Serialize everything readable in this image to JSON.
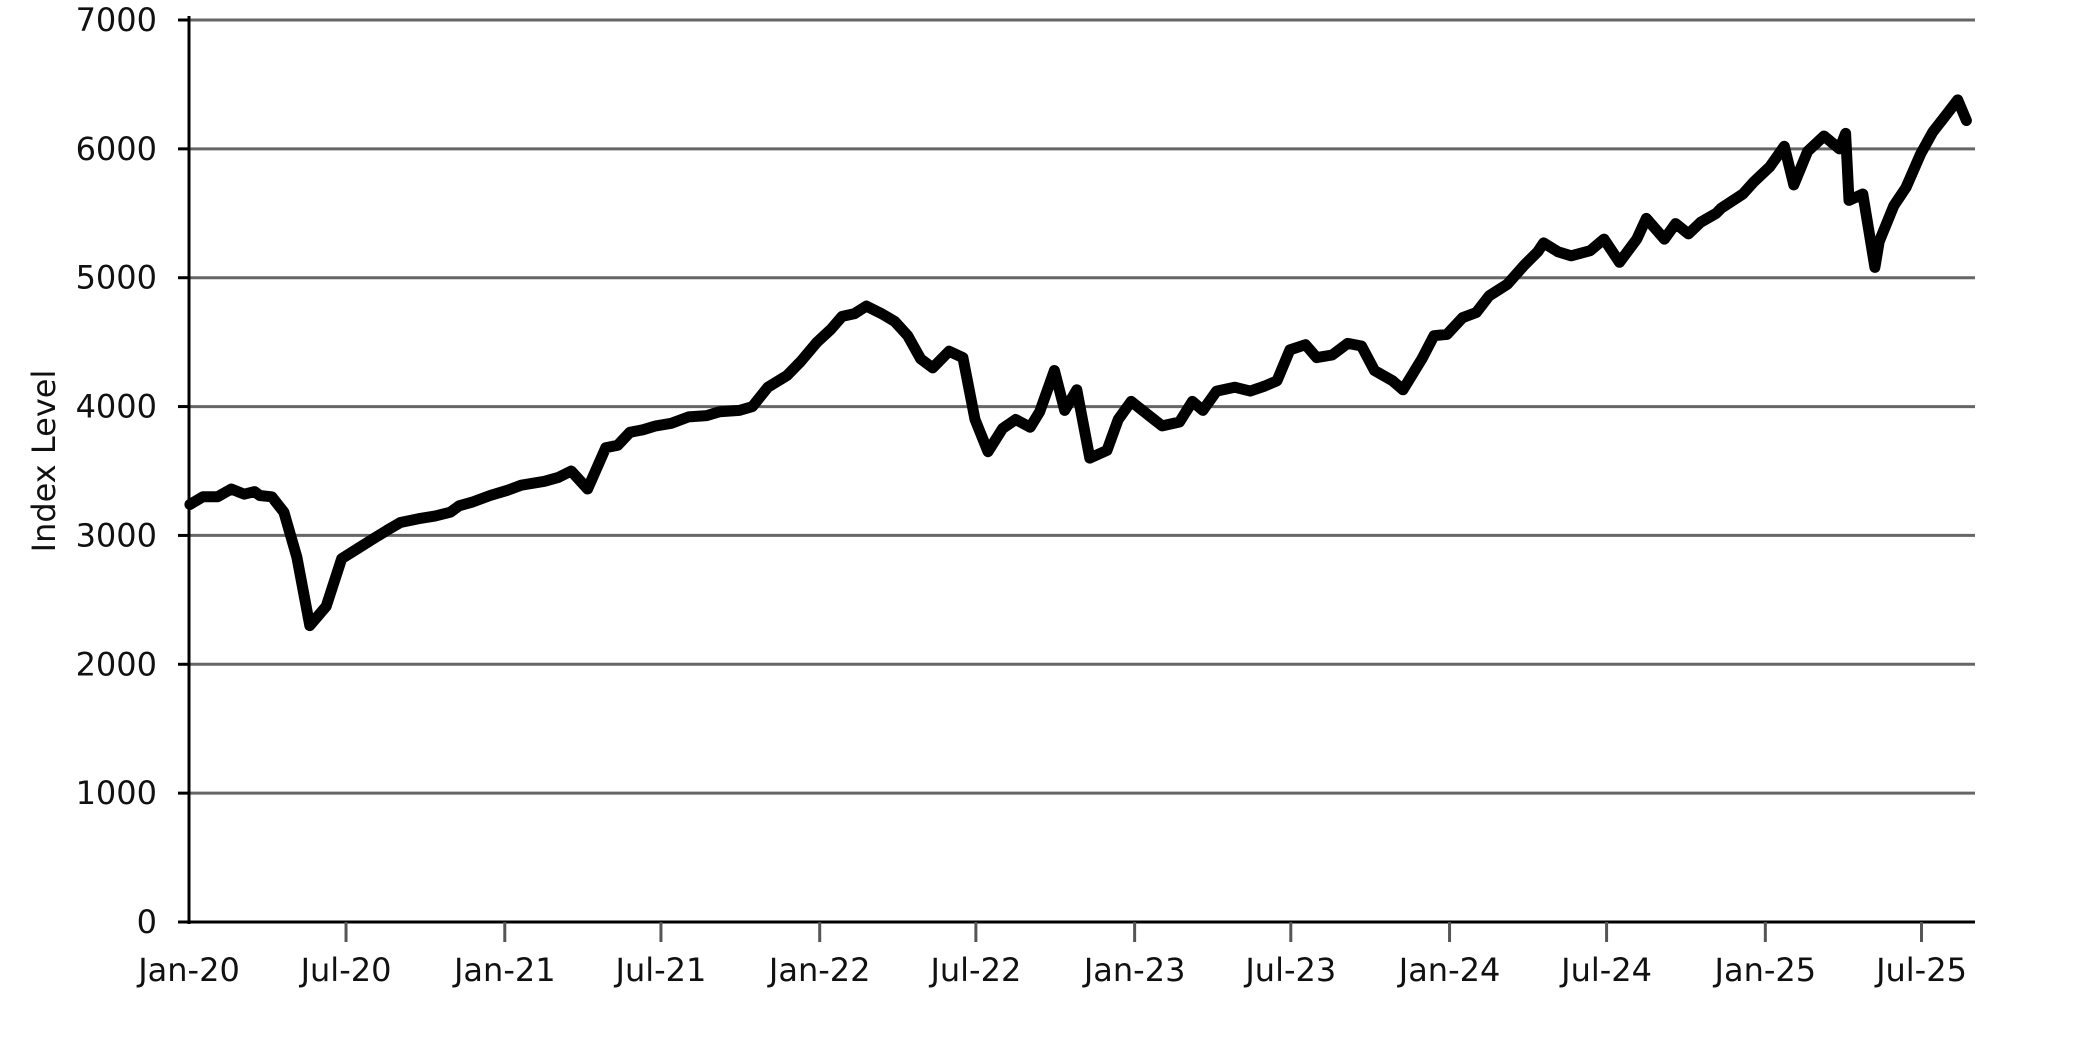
{
  "chart_data": {
    "type": "line",
    "title": "",
    "xlabel": "",
    "ylabel": "Index Level",
    "ylim": [
      0,
      7000
    ],
    "xlim": [
      "2020-01",
      "2025-09"
    ],
    "yticks": [
      0,
      1000,
      2000,
      3000,
      4000,
      5000,
      6000,
      7000
    ],
    "ytick_labels": [
      "0",
      "1000",
      "2000",
      "3000",
      "4000",
      "5000",
      "6000",
      "7000"
    ],
    "xticks": [
      "2020-01",
      "2020-07",
      "2021-01",
      "2021-07",
      "2022-01",
      "2022-07",
      "2023-01",
      "2023-07",
      "2024-01",
      "2024-07",
      "2025-01",
      "2025-07"
    ],
    "xtick_labels": [
      "Jan-20",
      "Jul-20",
      "Jan-21",
      "Jul-21",
      "Jan-22",
      "Jul-22",
      "Jan-23",
      "Jul-23",
      "Jan-24",
      "Jul-24",
      "Jan-25",
      "Jul-25"
    ],
    "grid": "horizontal",
    "line_color": "#000000",
    "grid_color": "#666666",
    "series": [
      {
        "x": [
          "2020-01-02",
          "2020-01-17",
          "2020-02-03",
          "2020-02-19",
          "2020-03-05",
          "2020-03-17",
          "2020-03-23",
          "2020-04-06",
          "2020-04-20",
          "2020-05-05",
          "2020-05-20",
          "2020-06-08",
          "2020-06-26",
          "2020-07-15",
          "2020-08-03",
          "2020-08-20",
          "2020-09-02",
          "2020-09-23",
          "2020-10-12",
          "2020-10-30",
          "2020-11-09",
          "2020-11-25",
          "2020-12-15",
          "2021-01-04",
          "2021-01-20",
          "2021-02-16",
          "2021-03-04",
          "2021-03-19",
          "2021-04-07",
          "2021-04-28",
          "2021-05-12",
          "2021-05-26",
          "2021-06-10",
          "2021-06-25",
          "2021-07-13",
          "2021-08-02",
          "2021-08-23",
          "2021-09-07",
          "2021-09-30",
          "2021-10-15",
          "2021-11-02",
          "2021-11-24",
          "2021-12-10",
          "2021-12-29",
          "2022-01-14",
          "2022-01-27",
          "2022-02-10",
          "2022-02-24",
          "2022-03-14",
          "2022-03-29",
          "2022-04-13",
          "2022-04-28",
          "2022-05-12",
          "2022-05-31",
          "2022-06-16",
          "2022-06-30",
          "2022-07-15",
          "2022-08-01",
          "2022-08-16",
          "2022-09-02",
          "2022-09-13",
          "2022-09-30",
          "2022-10-12",
          "2022-10-26",
          "2022-11-10",
          "2022-11-30",
          "2022-12-13",
          "2022-12-28",
          "2023-01-12",
          "2023-02-02",
          "2023-02-22",
          "2023-03-09",
          "2023-03-21",
          "2023-04-06",
          "2023-04-27",
          "2023-05-15",
          "2023-06-01",
          "2023-06-15",
          "2023-06-30",
          "2023-07-18",
          "2023-07-31",
          "2023-08-18",
          "2023-09-05",
          "2023-09-21",
          "2023-10-06",
          "2023-10-27",
          "2023-11-08",
          "2023-11-30",
          "2023-12-14",
          "2023-12-29",
          "2024-01-16",
          "2024-02-01",
          "2024-02-16",
          "2024-03-08",
          "2024-03-28",
          "2024-04-12",
          "2024-04-19",
          "2024-05-06",
          "2024-05-21",
          "2024-06-12",
          "2024-06-28",
          "2024-07-16",
          "2024-08-05",
          "2024-08-16",
          "2024-09-06",
          "2024-09-19",
          "2024-10-04",
          "2024-10-18",
          "2024-11-05",
          "2024-11-11",
          "2024-12-06",
          "2024-12-18",
          "2025-01-06",
          "2025-01-23",
          "2025-02-03",
          "2025-02-19",
          "2025-03-10",
          "2025-03-28",
          "2025-04-04",
          "2025-04-08",
          "2025-04-24",
          "2025-05-08",
          "2025-05-13",
          "2025-05-30",
          "2025-06-13",
          "2025-06-30",
          "2025-07-14",
          "2025-07-28",
          "2025-08-12",
          "2025-08-22"
        ],
        "y": [
          3240,
          3300,
          3300,
          3360,
          3320,
          3340,
          3310,
          3300,
          3180,
          2830,
          2300,
          2450,
          2820,
          2900,
          2980,
          3050,
          3100,
          3130,
          3150,
          3180,
          3230,
          3260,
          3310,
          3350,
          3390,
          3420,
          3450,
          3500,
          3360,
          3680,
          3700,
          3800,
          3820,
          3850,
          3870,
          3920,
          3930,
          3960,
          3970,
          4000,
          4150,
          4240,
          4350,
          4500,
          4600,
          4700,
          4720,
          4780,
          4720,
          4660,
          4550,
          4370,
          4300,
          4430,
          4380,
          3900,
          3650,
          3830,
          3900,
          3840,
          3960,
          4280,
          3970,
          4130,
          3600,
          3660,
          3900,
          4040,
          3960,
          3850,
          3880,
          4040,
          3970,
          4120,
          4150,
          4120,
          4160,
          4200,
          4440,
          4480,
          4380,
          4400,
          4490,
          4470,
          4280,
          4200,
          4130,
          4370,
          4550,
          4560,
          4690,
          4730,
          4860,
          4950,
          5100,
          5200,
          5270,
          5200,
          5170,
          5210,
          5300,
          5120,
          5300,
          5460,
          5300,
          5420,
          5340,
          5430,
          5500,
          5540,
          5650,
          5740,
          5860,
          6020,
          5720,
          5980,
          6100,
          6000,
          6120,
          5600,
          5650,
          5080,
          5280,
          5560,
          5700,
          5960,
          6130,
          6250,
          6380,
          6220
        ]
      }
    ]
  }
}
